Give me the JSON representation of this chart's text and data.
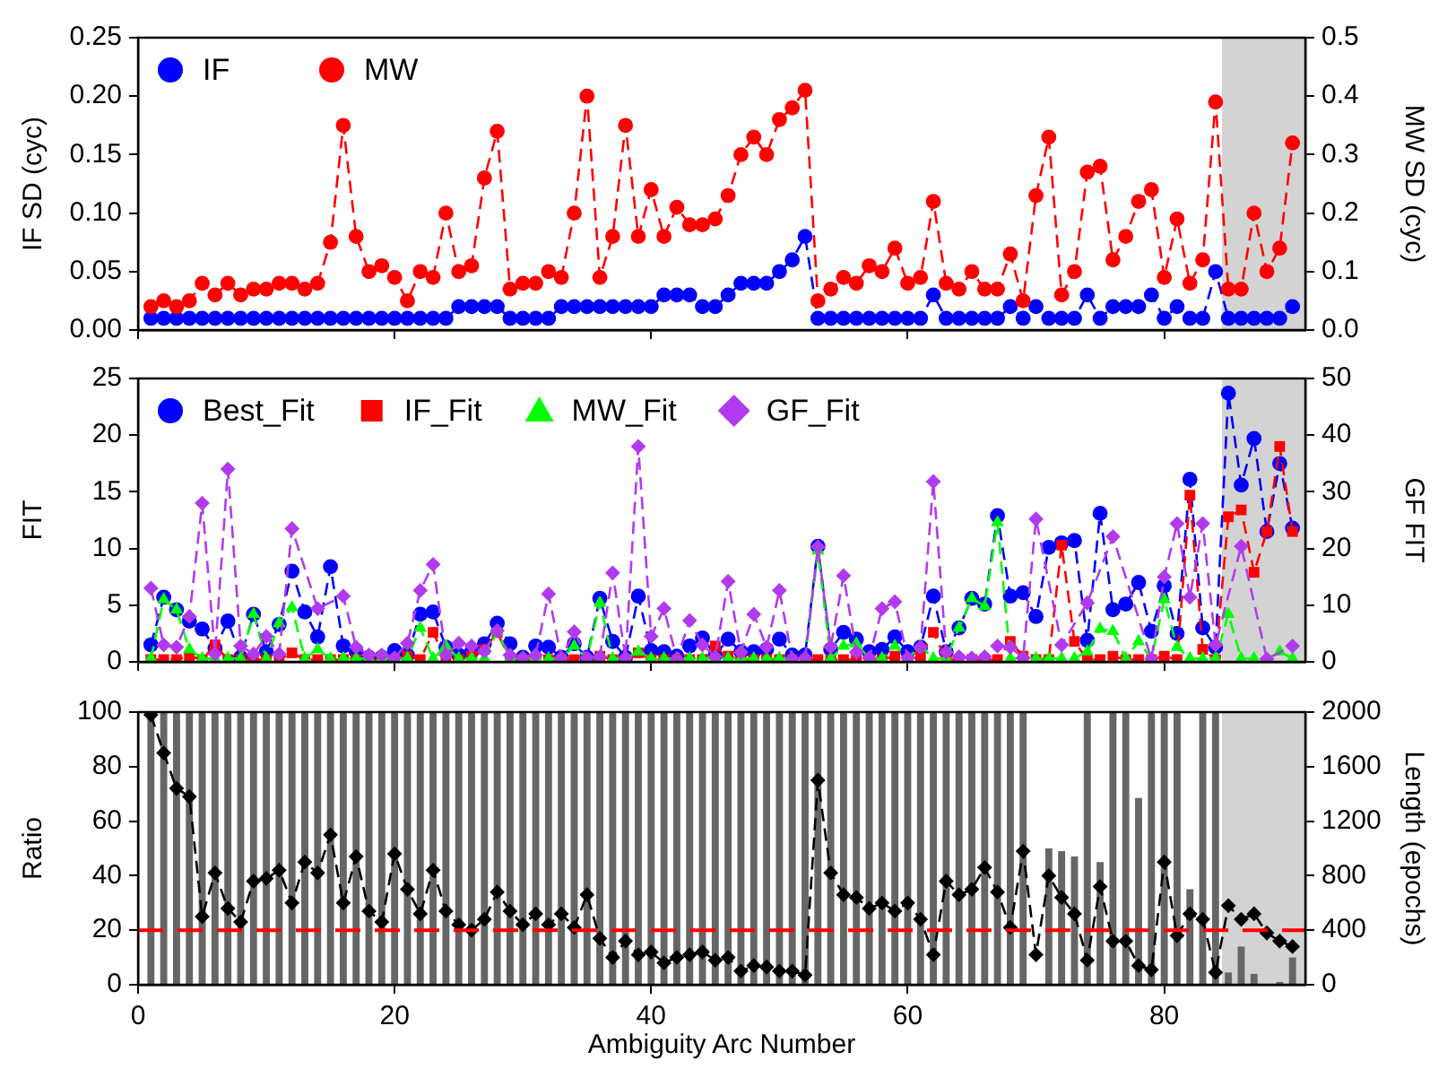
{
  "chart_data": [
    {
      "type": "line",
      "ylabel": "IF SD (cyc)",
      "y2label": "MW SD (cyc)",
      "x": [
        1,
        2,
        3,
        4,
        5,
        6,
        7,
        8,
        9,
        10,
        11,
        12,
        13,
        14,
        15,
        16,
        17,
        18,
        19,
        20,
        21,
        22,
        23,
        24,
        25,
        26,
        27,
        28,
        29,
        30,
        31,
        32,
        33,
        34,
        35,
        36,
        37,
        38,
        39,
        40,
        41,
        42,
        43,
        44,
        45,
        46,
        47,
        48,
        49,
        50,
        51,
        52,
        53,
        54,
        55,
        56,
        57,
        58,
        59,
        60,
        61,
        62,
        63,
        64,
        65,
        66,
        67,
        68,
        69,
        70,
        71,
        72,
        73,
        74,
        75,
        76,
        77,
        78,
        79,
        80,
        81,
        82,
        83,
        84,
        85,
        86,
        87,
        88,
        89,
        90
      ],
      "xlim": [
        0,
        91
      ],
      "xticks": [
        0,
        20,
        40,
        60,
        80
      ],
      "ylim": [
        0,
        0.25
      ],
      "yticks": [
        {
          "value": 0,
          "label": "0.00"
        },
        {
          "value": 0.05,
          "label": "0.05"
        },
        {
          "value": 0.1,
          "label": "0.10"
        },
        {
          "value": 0.15,
          "label": "0.15"
        },
        {
          "value": 0.2,
          "label": "0.20"
        },
        {
          "value": 0.25,
          "label": "0.25"
        }
      ],
      "y2lim": [
        0,
        0.5
      ],
      "y2ticks": [
        {
          "value": 0,
          "label": "0.0"
        },
        {
          "value": 0.1,
          "label": "0.1"
        },
        {
          "value": 0.2,
          "label": "0.2"
        },
        {
          "value": 0.3,
          "label": "0.3"
        },
        {
          "value": 0.4,
          "label": "0.4"
        },
        {
          "value": 0.5,
          "label": "0.5"
        }
      ],
      "tick_labels": "y",
      "legend": "top left",
      "marker": "circle",
      "line_style": "dashed",
      "grid": false,
      "bands": [
        {
          "axis": "x",
          "from": 84.5,
          "to": 91,
          "color": "#d3d3d3"
        }
      ],
      "series": [
        {
          "name": "IF",
          "color": "#0000ff",
          "values": [
            0.01,
            0.01,
            0.01,
            0.01,
            0.01,
            0.01,
            0.01,
            0.01,
            0.01,
            0.01,
            0.01,
            0.01,
            0.01,
            0.01,
            0.01,
            0.01,
            0.01,
            0.01,
            0.01,
            0.01,
            0.01,
            0.01,
            0.01,
            0.01,
            0.02,
            0.02,
            0.02,
            0.02,
            0.01,
            0.01,
            0.01,
            0.01,
            0.02,
            0.02,
            0.02,
            0.02,
            0.02,
            0.02,
            0.02,
            0.02,
            0.03,
            0.03,
            0.03,
            0.02,
            0.02,
            0.03,
            0.04,
            0.04,
            0.04,
            0.05,
            0.06,
            0.08,
            0.01,
            0.01,
            0.01,
            0.01,
            0.01,
            0.01,
            0.01,
            0.01,
            0.01,
            0.03,
            0.01,
            0.01,
            0.01,
            0.01,
            0.01,
            0.02,
            0.01,
            0.02,
            0.01,
            0.01,
            0.01,
            0.03,
            0.01,
            0.02,
            0.02,
            0.02,
            0.03,
            0.01,
            0.02,
            0.01,
            0.01,
            0.05,
            0.01,
            0.01,
            0.01,
            0.01,
            0.01,
            0.02
          ]
        },
        {
          "name": "MW",
          "color": "#ff0000",
          "axis": "y2",
          "values": [
            0.04,
            0.05,
            0.04,
            0.05,
            0.08,
            0.06,
            0.08,
            0.06,
            0.07,
            0.07,
            0.08,
            0.08,
            0.07,
            0.08,
            0.15,
            0.35,
            0.16,
            0.1,
            0.11,
            0.09,
            0.05,
            0.1,
            0.09,
            0.2,
            0.1,
            0.11,
            0.26,
            0.34,
            0.07,
            0.08,
            0.08,
            0.1,
            0.09,
            0.2,
            0.4,
            0.09,
            0.16,
            0.35,
            0.16,
            0.24,
            0.16,
            0.21,
            0.18,
            0.18,
            0.19,
            0.23,
            0.3,
            0.33,
            0.3,
            0.36,
            0.38,
            0.41,
            0.05,
            0.07,
            0.09,
            0.08,
            0.11,
            0.1,
            0.14,
            0.08,
            0.09,
            0.22,
            0.08,
            0.07,
            0.1,
            0.07,
            0.07,
            0.13,
            0.05,
            0.23,
            0.33,
            0.06,
            0.1,
            0.27,
            0.28,
            0.12,
            0.16,
            0.22,
            0.24,
            0.09,
            0.19,
            0.08,
            0.12,
            0.39,
            0.07,
            0.07,
            0.2,
            0.1,
            0.14,
            0.32
          ]
        }
      ]
    },
    {
      "type": "line",
      "ylabel": "FIT",
      "y2label": "GF FIT",
      "x": [
        1,
        2,
        3,
        4,
        5,
        6,
        7,
        8,
        9,
        10,
        11,
        12,
        13,
        14,
        15,
        16,
        17,
        18,
        19,
        20,
        21,
        22,
        23,
        24,
        25,
        26,
        27,
        28,
        29,
        30,
        31,
        32,
        33,
        34,
        35,
        36,
        37,
        38,
        39,
        40,
        41,
        42,
        43,
        44,
        45,
        46,
        47,
        48,
        49,
        50,
        51,
        52,
        53,
        54,
        55,
        56,
        57,
        58,
        59,
        60,
        61,
        62,
        63,
        64,
        65,
        66,
        67,
        68,
        69,
        70,
        71,
        72,
        73,
        74,
        75,
        76,
        77,
        78,
        79,
        80,
        81,
        82,
        83,
        84,
        85,
        86,
        87,
        88,
        89,
        90
      ],
      "xlim": [
        0,
        91
      ],
      "xticks": [
        0,
        20,
        40,
        60,
        80
      ],
      "ylim": [
        0,
        25
      ],
      "yticks": [
        0,
        5,
        10,
        15,
        20,
        25
      ],
      "y2lim": [
        0,
        50
      ],
      "y2ticks": [
        0,
        10,
        20,
        30,
        40,
        50
      ],
      "tick_labels": "y",
      "legend": "top left",
      "line_style": "dashed",
      "grid": false,
      "bands": [
        {
          "axis": "x",
          "from": 84.5,
          "to": 91,
          "color": "#d3d3d3"
        }
      ],
      "series": [
        {
          "name": "Best_Fit",
          "color": "#0000ff",
          "marker": "circle",
          "values": [
            1.5,
            5.7,
            4.6,
            3.6,
            2.9,
            1.2,
            3.6,
            0.4,
            4.2,
            0.9,
            3.3,
            8.0,
            4.4,
            2.2,
            8.4,
            1.4,
            0.9,
            0.4,
            0.4,
            1.0,
            0.6,
            4.2,
            4.4,
            1.3,
            0.6,
            0.9,
            1.6,
            3.4,
            1.6,
            0.4,
            1.4,
            1.3,
            0.4,
            1.6,
            0.4,
            5.6,
            1.8,
            0.4,
            5.8,
            1.0,
            0.9,
            0.5,
            1.4,
            2.1,
            0.6,
            2.0,
            0.9,
            0.9,
            1.1,
            2.0,
            0.6,
            0.6,
            10.2,
            1.1,
            2.6,
            2.0,
            0.9,
            1.1,
            2.2,
            0.9,
            1.3,
            5.8,
            0.9,
            3.0,
            5.6,
            5.1,
            12.9,
            5.8,
            6.1,
            4.0,
            10.1,
            10.5,
            10.7,
            1.9,
            13.1,
            4.6,
            5.1,
            7.0,
            2.7,
            6.7,
            2.5,
            16.1,
            3.0,
            1.3,
            23.7,
            15.6,
            19.7,
            11.5,
            17.5,
            11.8
          ]
        },
        {
          "name": "IF_Fit",
          "color": "#ff0000",
          "marker": "square",
          "values": [
            0.2,
            0.2,
            0.2,
            0.5,
            0.2,
            1.5,
            0.2,
            0.2,
            0.2,
            0.2,
            0.2,
            0.8,
            0.2,
            0.2,
            0.2,
            0.2,
            0.2,
            0.2,
            0.2,
            0.2,
            0.5,
            0.2,
            2.6,
            0.2,
            0.2,
            0.5,
            1.1,
            2.6,
            0.2,
            0.2,
            0.2,
            0.2,
            0.2,
            0.2,
            0.2,
            0.5,
            0.2,
            0.2,
            0.8,
            0.2,
            0.2,
            0.2,
            0.2,
            0.2,
            1.4,
            0.5,
            0.2,
            0.2,
            0.2,
            0.2,
            0.2,
            0.2,
            0.2,
            0.2,
            0.2,
            0.2,
            0.2,
            0.2,
            0.5,
            0.2,
            0.5,
            2.6,
            0.2,
            0.2,
            0.2,
            0.2,
            0.2,
            1.8,
            0.5,
            0.2,
            0.2,
            10.3,
            1.8,
            0.2,
            0.2,
            0.5,
            0.2,
            0.2,
            0.2,
            0.5,
            0.2,
            14.7,
            1.1,
            0.2,
            12.8,
            13.4,
            7.9,
            11.5,
            19.0,
            11.5
          ]
        },
        {
          "name": "MW_Fit",
          "color": "#00ff00",
          "marker": "triangle",
          "values": [
            0.3,
            5.5,
            4.6,
            1.1,
            0.3,
            0.3,
            0.3,
            0.3,
            4.2,
            0.3,
            3.4,
            4.8,
            0.3,
            1.1,
            0.3,
            0.3,
            0.3,
            0.3,
            0.3,
            0.3,
            0.3,
            3.0,
            0.3,
            1.4,
            0.3,
            0.3,
            0.3,
            2.7,
            0.3,
            0.3,
            0.3,
            0.3,
            0.3,
            1.4,
            0.3,
            5.2,
            0.3,
            0.3,
            0.9,
            0.3,
            0.3,
            0.3,
            0.3,
            0.3,
            0.3,
            0.3,
            0.3,
            0.3,
            0.3,
            0.3,
            0.3,
            0.3,
            9.8,
            0.3,
            1.4,
            1.6,
            0.3,
            0.3,
            1.4,
            0.3,
            1.4,
            0.3,
            0.3,
            3.0,
            5.6,
            4.9,
            12.3,
            0.3,
            0.3,
            0.3,
            0.3,
            0.3,
            0.3,
            0.9,
            2.9,
            2.7,
            0.3,
            1.8,
            0.3,
            5.5,
            1.3,
            0.3,
            0.3,
            0.3,
            4.2,
            0.3,
            0.3,
            0.3,
            0.9,
            0.3
          ]
        },
        {
          "name": "GF_Fit",
          "color": "#b23aee",
          "marker": "diamond",
          "axis": "y2",
          "values": [
            13,
            3,
            2.6,
            8,
            28,
            1.4,
            34,
            2.8,
            1.4,
            4.5,
            1.4,
            23.5,
            null,
            9.4,
            null,
            11.6,
            2.6,
            1.2,
            1.2,
            0.7,
            3.3,
            12.6,
            17.2,
            1.2,
            3.3,
            2.8,
            1.9,
            5.5,
            1.2,
            0.7,
            1.2,
            12,
            0.7,
            5.3,
            0.7,
            0.9,
            15.7,
            0.7,
            38,
            4.5,
            9.4,
            0.5,
            7.3,
            3,
            0.9,
            14.2,
            1.7,
            8.4,
            2.6,
            12.6,
            0.5,
            0.7,
            20.3,
            2.6,
            15.2,
            1.7,
            0.7,
            9.4,
            10.6,
            0.7,
            2.6,
            31.8,
            1.7,
            0.9,
            0.7,
            0.9,
            2.8,
            2.6,
            0.7,
            25.2,
            null,
            3,
            null,
            10.4,
            null,
            22.1,
            null,
            null,
            0.5,
            15,
            24.4,
            11.4,
            24.4,
            3,
            null,
            20.4,
            null,
            0.5,
            null,
            2.8
          ]
        }
      ]
    },
    {
      "type": "line",
      "xlabel": "Ambiguity Arc Number",
      "ylabel": "Ratio",
      "y2label": "Length (epochs)",
      "x": [
        1,
        2,
        3,
        4,
        5,
        6,
        7,
        8,
        9,
        10,
        11,
        12,
        13,
        14,
        15,
        16,
        17,
        18,
        19,
        20,
        21,
        22,
        23,
        24,
        25,
        26,
        27,
        28,
        29,
        30,
        31,
        32,
        33,
        34,
        35,
        36,
        37,
        38,
        39,
        40,
        41,
        42,
        43,
        44,
        45,
        46,
        47,
        48,
        49,
        50,
        51,
        52,
        53,
        54,
        55,
        56,
        57,
        58,
        59,
        60,
        61,
        62,
        63,
        64,
        65,
        66,
        67,
        68,
        69,
        70,
        71,
        72,
        73,
        74,
        75,
        76,
        77,
        78,
        79,
        80,
        81,
        82,
        83,
        84,
        85,
        86,
        87,
        88,
        89,
        90
      ],
      "xlim": [
        0,
        91
      ],
      "xticks": [
        0,
        20,
        40,
        60,
        80
      ],
      "ylim": [
        0,
        100
      ],
      "yticks": [
        0,
        20,
        40,
        60,
        80,
        100
      ],
      "y2lim": [
        0,
        2000
      ],
      "y2ticks": [
        0,
        400,
        800,
        1200,
        1600,
        2000
      ],
      "line_style": "dashed",
      "grid": false,
      "bands": [
        {
          "axis": "x",
          "from": 84.5,
          "to": 91,
          "color": "#d3d3d3"
        }
      ],
      "ref_lines": [
        {
          "axis": "y",
          "value": 20,
          "color": "#ff0000",
          "line_style": "dashed"
        }
      ],
      "series": [
        {
          "type": "bar",
          "axis": "y2",
          "color": "#666666",
          "values": [
            2000,
            2000,
            2000,
            2000,
            2000,
            2000,
            2000,
            2000,
            2000,
            2000,
            2000,
            2000,
            2000,
            2000,
            2000,
            2000,
            2000,
            2000,
            2000,
            2000,
            2000,
            2000,
            2000,
            2000,
            2000,
            2000,
            2000,
            2000,
            2000,
            2000,
            2000,
            2000,
            2000,
            2000,
            2000,
            2000,
            2000,
            2000,
            2000,
            2000,
            2000,
            2000,
            2000,
            2000,
            2000,
            2000,
            2000,
            2000,
            2000,
            2000,
            2000,
            2000,
            2000,
            2000,
            2000,
            2000,
            2000,
            2000,
            2000,
            2000,
            2000,
            2000,
            2000,
            2000,
            2000,
            2000,
            2000,
            2000,
            2000,
            0,
            1000,
            980,
            940,
            2000,
            900,
            2000,
            2000,
            1370,
            2000,
            2000,
            2000,
            700,
            2000,
            2000,
            90,
            280,
            80,
            null,
            20,
            200
          ]
        },
        {
          "color": "#000000",
          "marker": "diamond",
          "values": [
            99,
            85,
            72,
            69,
            25,
            41,
            28,
            23,
            38,
            39,
            42,
            30,
            45,
            41,
            55,
            30,
            47,
            27,
            23,
            48,
            35,
            26,
            42,
            27,
            22,
            20,
            24,
            34,
            27,
            22,
            26,
            22,
            26,
            21,
            33,
            17,
            10,
            16,
            11,
            12,
            8,
            10,
            11,
            12,
            9,
            10,
            5,
            7,
            6.5,
            5,
            5,
            3.5,
            75,
            41,
            33,
            32,
            28,
            30,
            27,
            30,
            24,
            11,
            38,
            33,
            35,
            43,
            34,
            21,
            49,
            11,
            40,
            32,
            26,
            9,
            36,
            16,
            16,
            7,
            5.5,
            45,
            18,
            26,
            24,
            4.5,
            29,
            24,
            26,
            19,
            16,
            14
          ]
        }
      ]
    }
  ]
}
